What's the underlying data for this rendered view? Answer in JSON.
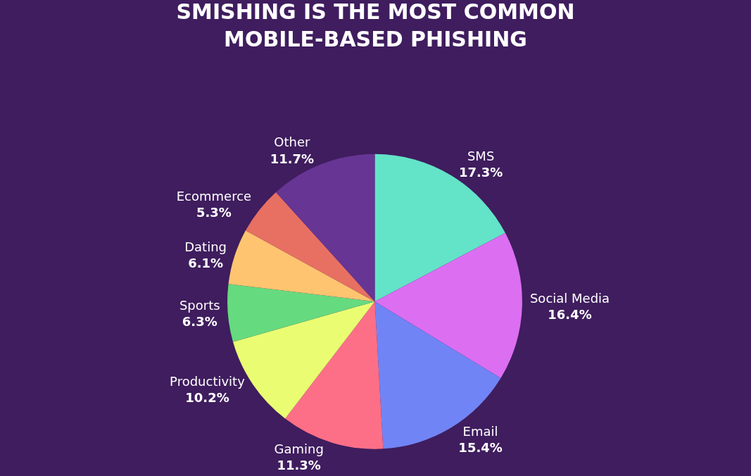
{
  "chart_data": {
    "type": "pie",
    "title": "SMISHING IS THE MOST COMMON\nMOBILE-BASED PHISHING",
    "categories": [
      "SMS",
      "Social Media",
      "Email",
      "Gaming",
      "Productivity",
      "Sports",
      "Dating",
      "Ecommerce",
      "Other"
    ],
    "values": [
      17.3,
      16.4,
      15.4,
      11.3,
      10.2,
      6.3,
      6.1,
      5.3,
      11.7
    ],
    "value_labels": [
      "17.3%",
      "16.4%",
      "15.4%",
      "11.3%",
      "10.2%",
      "6.3%",
      "6.1%",
      "5.3%",
      "11.7%"
    ],
    "colors": [
      "#63e3c8",
      "#dc6ef2",
      "#7184f5",
      "#fd6f86",
      "#eafd72",
      "#66da7f",
      "#fec46f",
      "#e77062",
      "#673594"
    ],
    "legend": false
  }
}
